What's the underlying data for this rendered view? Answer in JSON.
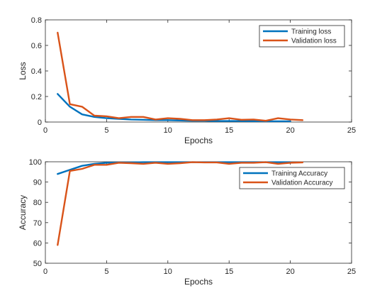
{
  "figure": {
    "background": "#ffffff",
    "axis_color": "#262626",
    "series_colors": [
      "#0072bd",
      "#d95319"
    ]
  },
  "chart_data": [
    {
      "type": "line",
      "xlabel": "Epochs",
      "ylabel": "Loss",
      "xlim": [
        0,
        25
      ],
      "ylim": [
        0,
        0.8
      ],
      "xticks": [
        0,
        5,
        10,
        15,
        20,
        25
      ],
      "yticks": [
        0,
        0.2,
        0.4,
        0.6,
        0.8
      ],
      "xtick_labels": [
        "0",
        "5",
        "10",
        "15",
        "20",
        "25"
      ],
      "ytick_labels": [
        "0",
        "0.2",
        "0.4",
        "0.6",
        "0.8"
      ],
      "grid": false,
      "legend_position": "top-right",
      "series": [
        {
          "name": "Training loss",
          "color": "#0072bd",
          "x": [
            1,
            2,
            3,
            4,
            5,
            6,
            7,
            8,
            9,
            10,
            11,
            12,
            13,
            14,
            15,
            16,
            17,
            18,
            19,
            20
          ],
          "y": [
            0.22,
            0.12,
            0.06,
            0.04,
            0.03,
            0.025,
            0.02,
            0.018,
            0.015,
            0.015,
            0.012,
            0.01,
            0.01,
            0.008,
            0.008,
            0.008,
            0.007,
            0.006,
            0.006,
            0.006
          ]
        },
        {
          "name": "Validation loss",
          "color": "#d95319",
          "x": [
            1,
            2,
            3,
            4,
            5,
            6,
            7,
            8,
            9,
            10,
            11,
            12,
            13,
            14,
            15,
            16,
            17,
            18,
            19,
            20,
            21
          ],
          "y": [
            0.7,
            0.14,
            0.12,
            0.05,
            0.045,
            0.03,
            0.04,
            0.04,
            0.02,
            0.03,
            0.025,
            0.015,
            0.015,
            0.02,
            0.03,
            0.018,
            0.02,
            0.01,
            0.03,
            0.02,
            0.015
          ]
        }
      ]
    },
    {
      "type": "line",
      "xlabel": "Epochs",
      "ylabel": "Accuracy",
      "xlim": [
        0,
        25
      ],
      "ylim": [
        50,
        100
      ],
      "xticks": [
        0,
        5,
        10,
        15,
        20,
        25
      ],
      "yticks": [
        50,
        60,
        70,
        80,
        90,
        100
      ],
      "xtick_labels": [
        "0",
        "5",
        "10",
        "15",
        "20",
        "25"
      ],
      "ytick_labels": [
        "50",
        "60",
        "70",
        "80",
        "90",
        "100"
      ],
      "grid": false,
      "legend_position": "top-right",
      "series": [
        {
          "name": "Training Accuracy",
          "color": "#0072bd",
          "x": [
            1,
            2,
            3,
            4,
            5,
            6,
            7,
            8,
            9,
            10,
            11,
            12,
            13,
            14,
            15,
            16,
            17,
            18,
            19,
            20
          ],
          "y": [
            94,
            96,
            98,
            99,
            99.5,
            99.6,
            99.7,
            99.8,
            99.8,
            99.8,
            99.8,
            99.8,
            99.8,
            99.8,
            99.8,
            99.8,
            99.8,
            99.8,
            99.8,
            99.8
          ]
        },
        {
          "name": "Validation Accuracy",
          "color": "#d95319",
          "x": [
            1,
            2,
            3,
            4,
            5,
            6,
            7,
            8,
            9,
            10,
            11,
            12,
            13,
            14,
            15,
            16,
            17,
            18,
            19,
            20,
            21
          ],
          "y": [
            59,
            95.5,
            96.5,
            98.5,
            98.5,
            99.5,
            99.3,
            99,
            99.5,
            99,
            99.3,
            99.8,
            99.7,
            99.7,
            99,
            99.5,
            99.5,
            99.8,
            99,
            99.5,
            99.7
          ]
        }
      ]
    }
  ]
}
